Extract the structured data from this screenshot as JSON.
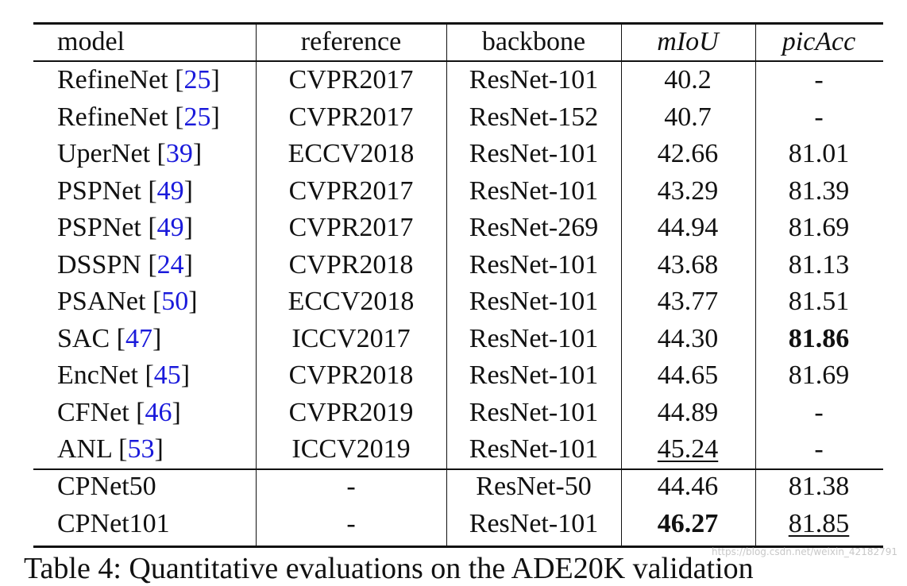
{
  "table": {
    "header": [
      "model",
      "reference",
      "backbone",
      "mIoU",
      "picAcc"
    ],
    "header_italic": [
      3,
      4
    ],
    "groups": [
      [
        {
          "cells": [
            "RefineNet [25]",
            "CVPR2017",
            "ResNet-101",
            "40.2",
            "-"
          ]
        },
        {
          "cells": [
            "RefineNet [25]",
            "CVPR2017",
            "ResNet-152",
            "40.7",
            "-"
          ]
        },
        {
          "cells": [
            "UperNet [39]",
            "ECCV2018",
            "ResNet-101",
            "42.66",
            "81.01"
          ]
        },
        {
          "cells": [
            "PSPNet [49]",
            "CVPR2017",
            "ResNet-101",
            "43.29",
            "81.39"
          ]
        },
        {
          "cells": [
            "PSPNet [49]",
            "CVPR2017",
            "ResNet-269",
            "44.94",
            "81.69"
          ]
        },
        {
          "cells": [
            "DSSPN [24]",
            "CVPR2018",
            "ResNet-101",
            "43.68",
            "81.13"
          ]
        },
        {
          "cells": [
            "PSANet [50]",
            "ECCV2018",
            "ResNet-101",
            "43.77",
            "81.51"
          ]
        },
        {
          "cells": [
            "SAC [47]",
            "ICCV2017",
            "ResNet-101",
            "44.30",
            "81.86"
          ],
          "bold": [
            4
          ]
        },
        {
          "cells": [
            "EncNet [45]",
            "CVPR2018",
            "ResNet-101",
            "44.65",
            "81.69"
          ]
        },
        {
          "cells": [
            "CFNet [46]",
            "CVPR2019",
            "ResNet-101",
            "44.89",
            "-"
          ]
        },
        {
          "cells": [
            "ANL [53]",
            "ICCV2019",
            "ResNet-101",
            "45.24",
            "-"
          ],
          "underline": [
            3
          ]
        }
      ],
      [
        {
          "cells": [
            "CPNet50",
            "-",
            "ResNet-50",
            "44.46",
            "81.38"
          ]
        },
        {
          "cells": [
            "CPNet101",
            "-",
            "ResNet-101",
            "46.27",
            "81.85"
          ],
          "bold": [
            3
          ],
          "underline": [
            4
          ]
        }
      ]
    ]
  },
  "caption": "Table 4: Quantitative evaluations on the ADE20K validation",
  "watermark": "https://blog.csdn.net/weixin_42182791"
}
